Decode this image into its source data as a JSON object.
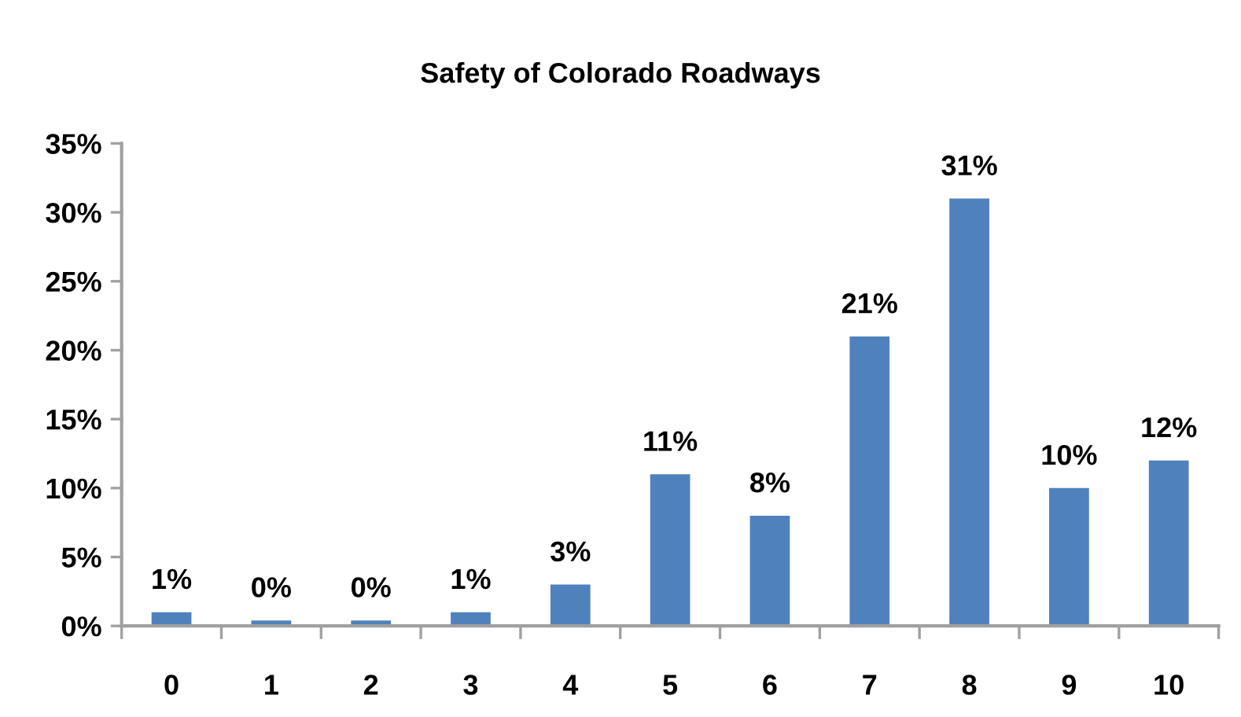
{
  "chart_data": {
    "type": "bar",
    "title": "Safety of Colorado Roadways",
    "categories": [
      "0",
      "1",
      "2",
      "3",
      "4",
      "5",
      "6",
      "7",
      "8",
      "9",
      "10"
    ],
    "values": [
      1,
      0.4,
      0.4,
      1,
      3,
      11,
      8,
      21,
      31,
      10,
      12
    ],
    "value_labels": [
      "1%",
      "0%",
      "0%",
      "1%",
      "3%",
      "11%",
      "8%",
      "21%",
      "31%",
      "10%",
      "12%"
    ],
    "color": "#4f81bd",
    "ylim": [
      0,
      35
    ],
    "yticks": [
      {
        "value": 0,
        "label": "0%"
      },
      {
        "value": 5,
        "label": "5%"
      },
      {
        "value": 10,
        "label": "10%"
      },
      {
        "value": 15,
        "label": "15%"
      },
      {
        "value": 20,
        "label": "20%"
      },
      {
        "value": 25,
        "label": "25%"
      },
      {
        "value": 30,
        "label": "30%"
      },
      {
        "value": 35,
        "label": "35%"
      }
    ],
    "grid": false,
    "legend": false
  }
}
